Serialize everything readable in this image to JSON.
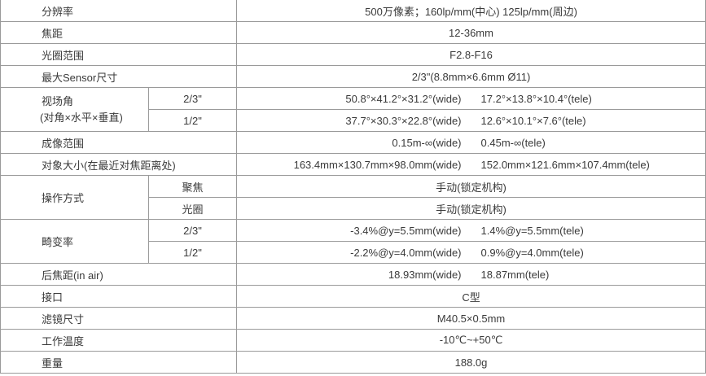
{
  "rows": {
    "resolution": {
      "label": "分辨率",
      "value": "500万像素；160lp/mm(中心) 125lp/mm(周边)"
    },
    "focal": {
      "label": "焦距",
      "value": "12-36mm"
    },
    "aperture": {
      "label": "光圈范围",
      "value": "F2.8-F16"
    },
    "sensor": {
      "label": "最大Sensor尺寸",
      "value": "2/3\"(8.8mm×6.6mm  Ø11)"
    },
    "fov": {
      "label_1": "视场角",
      "label_2": "(对角×水平×垂直)",
      "sub": [
        {
          "format": "2/3\"",
          "wide": "50.8°×41.2°×31.2°(wide)",
          "tele": "17.2°×13.8°×10.4°(tele)"
        },
        {
          "format": "1/2\"",
          "wide": "37.7°×30.3°×22.8°(wide)",
          "tele": "12.6°×10.1°×7.6°(tele)"
        }
      ]
    },
    "mod": {
      "label": "成像范围",
      "wide": "0.15m-∞(wide)",
      "tele": "0.45m-∞(tele)"
    },
    "object": {
      "label": "对象大小(在最近对焦距离处)",
      "wide": "163.4mm×130.7mm×98.0mm(wide)",
      "tele": "152.0mm×121.6mm×107.4mm(tele)"
    },
    "operation": {
      "label": "操作方式",
      "sub": [
        {
          "name": "聚焦",
          "value": "手动(锁定机构)"
        },
        {
          "name": "光圈",
          "value": "手动(锁定机构)"
        }
      ]
    },
    "distortion": {
      "label": "畸变率",
      "sub": [
        {
          "format": "2/3\"",
          "wide": "-3.4%@y=5.5mm(wide)",
          "tele": "1.4%@y=5.5mm(tele)"
        },
        {
          "format": "1/2\"",
          "wide": "-2.2%@y=4.0mm(wide)",
          "tele": "0.9%@y=4.0mm(tele)"
        }
      ]
    },
    "bfl": {
      "label": "后焦距(in air)",
      "wide": "18.93mm(wide)",
      "tele": "18.87mm(tele)"
    },
    "mount": {
      "label": "接口",
      "value": "C型"
    },
    "filter": {
      "label": "滤镜尺寸",
      "value": "M40.5×0.5mm"
    },
    "temp": {
      "label": "工作温度",
      "value": "-10℃~+50℃"
    },
    "weight": {
      "label": "重量",
      "value": "188.0g"
    }
  }
}
